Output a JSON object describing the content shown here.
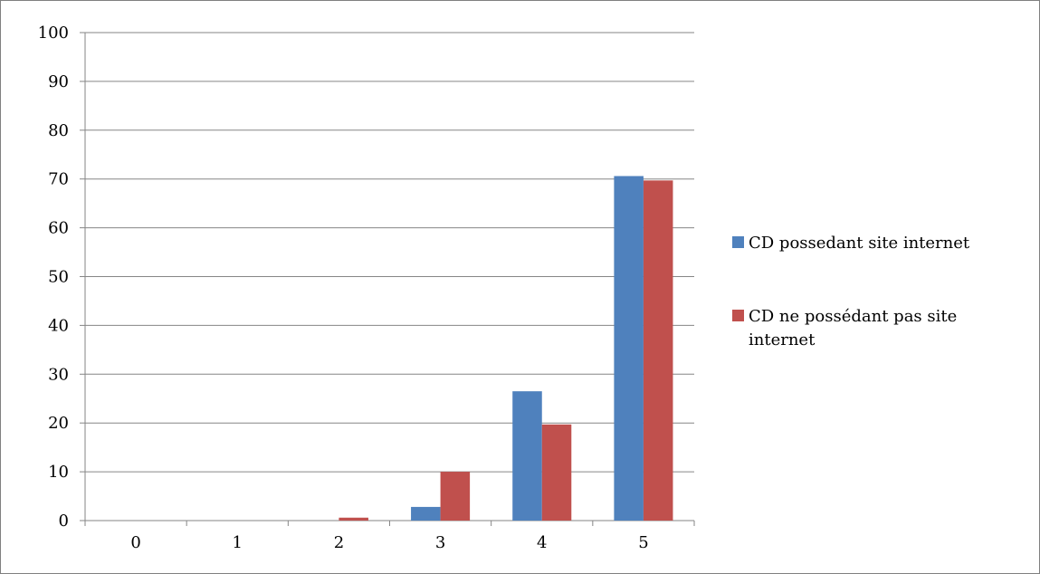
{
  "chart_data": {
    "type": "bar",
    "categories": [
      "0",
      "1",
      "2",
      "3",
      "4",
      "5"
    ],
    "series": [
      {
        "name": "CD possedant site internet",
        "color": "#4F81BD",
        "values": [
          0,
          0,
          0,
          2.8,
          26.5,
          70.6
        ]
      },
      {
        "name": "CD ne possédant pas site internet",
        "color": "#C0504D",
        "values": [
          0,
          0,
          0.6,
          10,
          19.7,
          69.7
        ]
      }
    ],
    "ylim": [
      0,
      100
    ],
    "yticks": [
      "0",
      "10",
      "20",
      "30",
      "40",
      "50",
      "60",
      "70",
      "80",
      "90",
      "100"
    ],
    "grid": true,
    "legend_position": "right",
    "title": "",
    "xlabel": "",
    "ylabel": ""
  }
}
